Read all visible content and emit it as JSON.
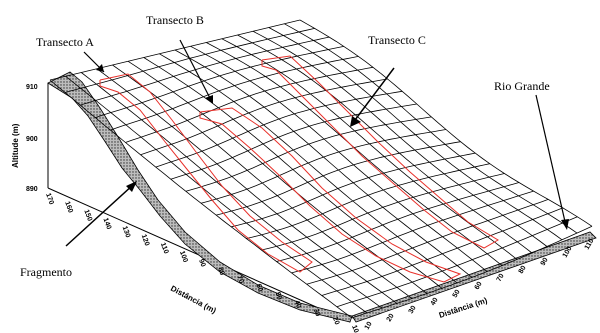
{
  "labels": {
    "transecto_a": "Transecto A",
    "transecto_b": "Transecto B",
    "transecto_c": "Transecto C",
    "rio_grande": "Rio Grande",
    "fragmento": "Fragmento"
  },
  "axes": {
    "z_title": "Altitude (m)",
    "z_ticks": [
      "910",
      "900",
      "890"
    ],
    "left_title": "Distância (m)",
    "left_ticks": [
      "170",
      "160",
      "150",
      "140",
      "130",
      "120",
      "110",
      "100",
      "90",
      "80",
      "70",
      "60",
      "50",
      "40",
      "30",
      "20",
      "10"
    ],
    "right_title": "Distância (m)",
    "right_ticks": [
      "10",
      "20",
      "30",
      "40",
      "50",
      "60",
      "70",
      "80",
      "90",
      "100",
      "110"
    ]
  },
  "colors": {
    "grid": "#000000",
    "transect": "#e8302a",
    "fragment_fill": "#8c8c8c"
  }
}
